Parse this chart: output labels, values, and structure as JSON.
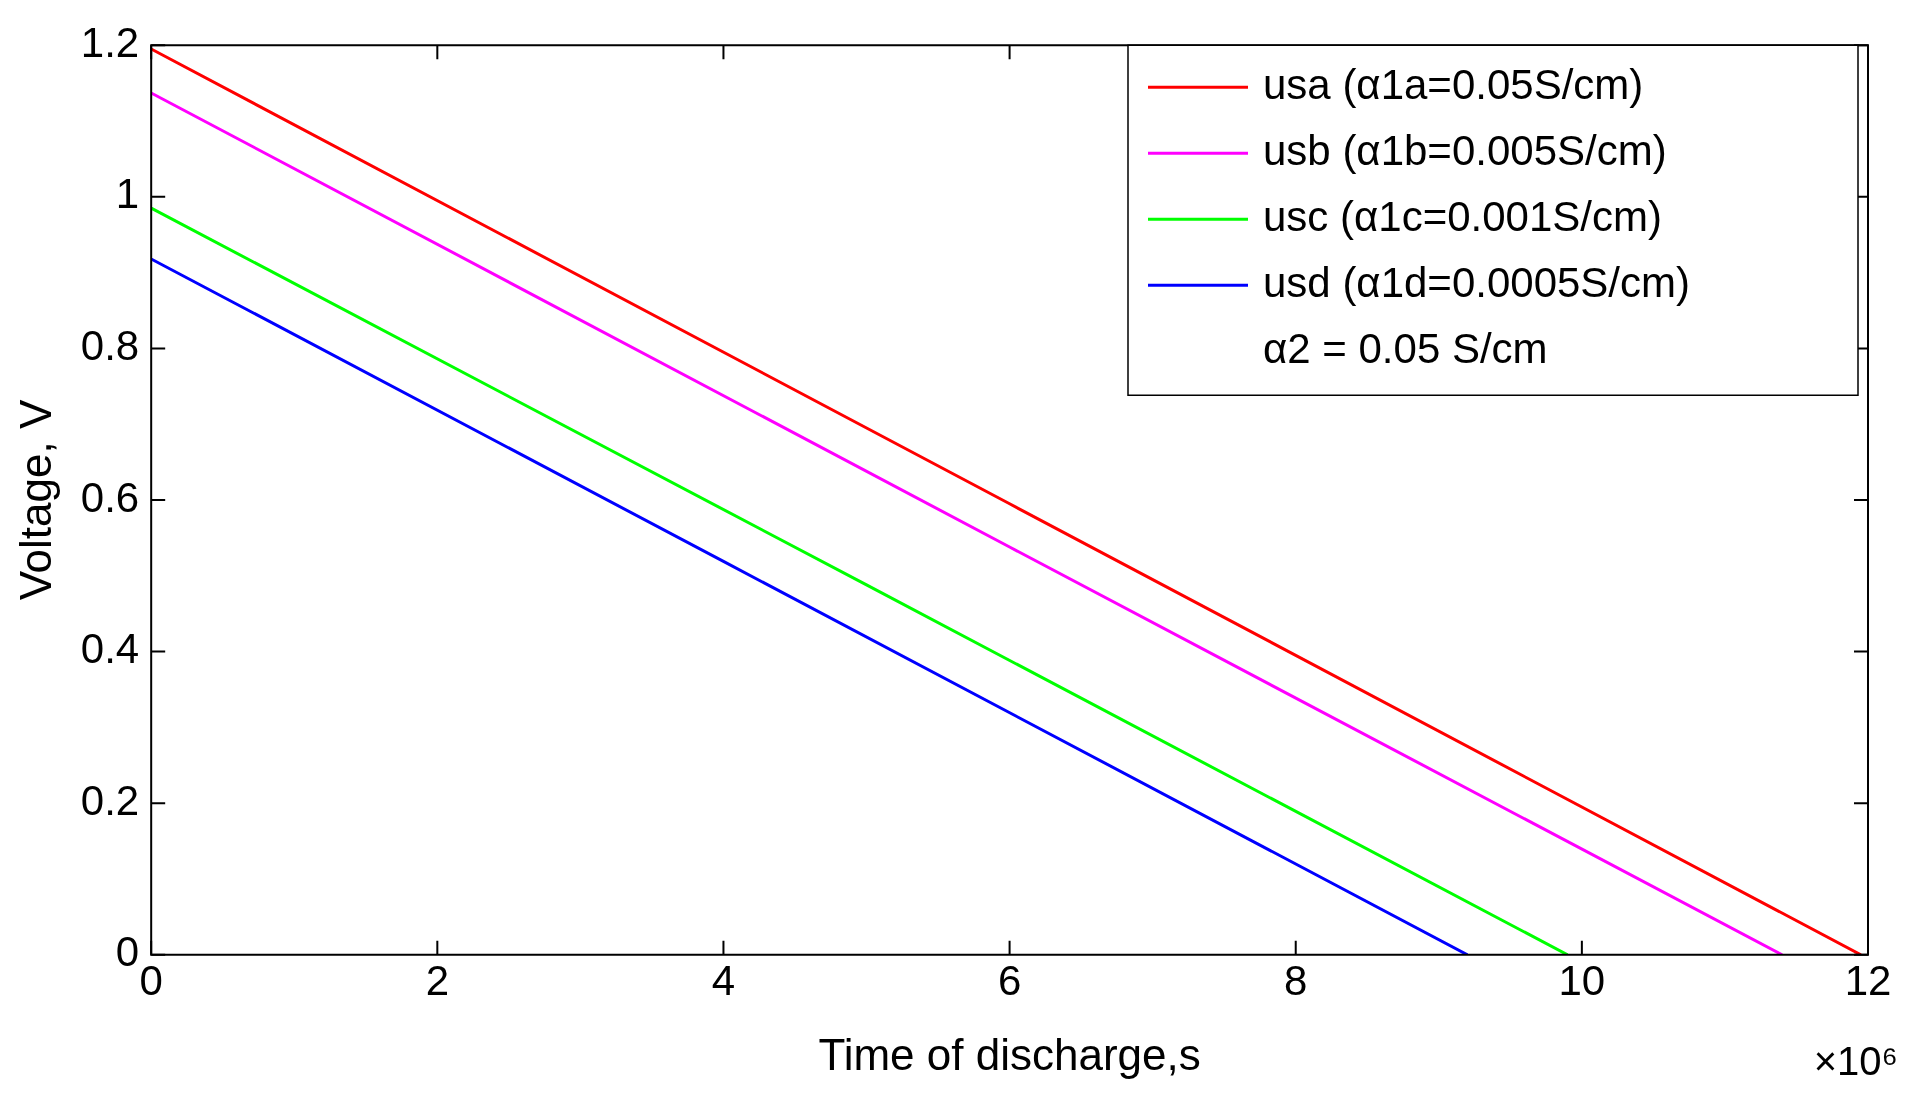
{
  "chart_data": {
    "type": "line",
    "xlabel": "Time of discharge,s",
    "ylabel": "Voltage, V",
    "xlim": [
      0,
      12
    ],
    "xticks": [
      0,
      2,
      4,
      6,
      8,
      10,
      12
    ],
    "ylim": [
      0,
      1.2
    ],
    "yticks": [
      0,
      0.2,
      0.4,
      0.6,
      0.8,
      1,
      1.2
    ],
    "grid": false,
    "legend": "top right",
    "marker": "none",
    "line_style": "solid",
    "annotations": [
      "×10⁶",
      "α2 = 0.05 S/cm"
    ],
    "series": [
      {
        "name": "usa (α1a=0.05S/cm)",
        "color": "#ff0000",
        "x": [
          0,
          6,
          11.95
        ],
        "values": [
          1.195,
          0.595,
          0
        ]
      },
      {
        "name": "usb (α1b=0.005S/cm)",
        "color": "#ff00ff",
        "x": [
          0,
          6,
          11.4
        ],
        "values": [
          1.137,
          0.538,
          0
        ]
      },
      {
        "name": "usc (α1c=0.001S/cm)",
        "color": "#00ff00",
        "x": [
          0,
          5,
          9.9
        ],
        "values": [
          0.985,
          0.488,
          0
        ]
      },
      {
        "name": "usd (α1d=0.0005S/cm)",
        "color": "#0000ff",
        "x": [
          0,
          4,
          9.2
        ],
        "values": [
          0.918,
          0.519,
          0
        ]
      }
    ]
  }
}
